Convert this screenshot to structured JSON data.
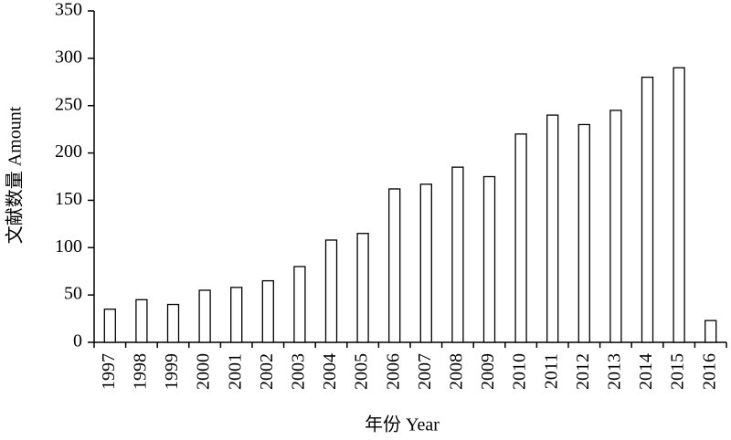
{
  "chart_data": {
    "type": "bar",
    "x_label": "年份 Year",
    "y_label": "文献数量 Amount",
    "categories": [
      "1997",
      "1998",
      "1999",
      "2000",
      "2001",
      "2002",
      "2003",
      "2004",
      "2005",
      "2006",
      "2007",
      "2008",
      "2009",
      "2010",
      "2011",
      "2012",
      "2013",
      "2014",
      "2015",
      "2016"
    ],
    "values": [
      35,
      45,
      40,
      55,
      58,
      65,
      80,
      108,
      115,
      162,
      167,
      185,
      175,
      220,
      240,
      230,
      245,
      280,
      290,
      23
    ],
    "color": "#ffffff",
    "ylim": [
      0,
      350
    ],
    "yticks": [
      0,
      50,
      100,
      150,
      200,
      250,
      300,
      350
    ],
    "grid": false
  }
}
